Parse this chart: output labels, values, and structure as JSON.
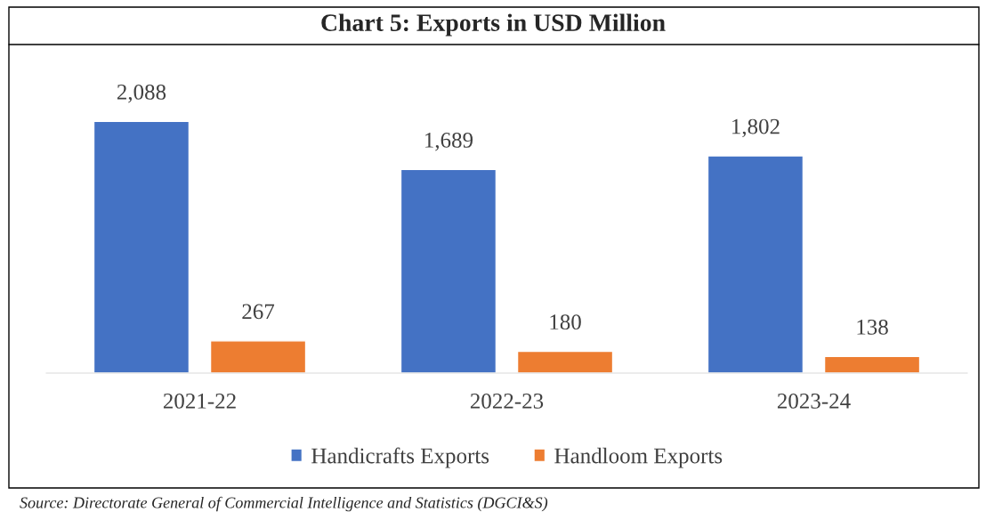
{
  "chart_data": {
    "type": "bar",
    "title": "Chart 5: Exports in USD Million",
    "categories": [
      "2021-22",
      "2022-23",
      "2023-24"
    ],
    "series": [
      {
        "name": "Handicrafts Exports",
        "color": "#4472c4",
        "values": [
          2088,
          1689,
          1802
        ],
        "value_labels": [
          "2,088",
          "1,689",
          "1,802"
        ]
      },
      {
        "name": "Handloom Exports",
        "color": "#ed7d31",
        "values": [
          267,
          180,
          138
        ],
        "value_labels": [
          "267",
          "180",
          "138"
        ]
      }
    ],
    "legend": "bottom",
    "grid": false,
    "annotations": [
      "Source: Directorate General of Commercial Intelligence and Statistics (DGCI&S)"
    ]
  }
}
